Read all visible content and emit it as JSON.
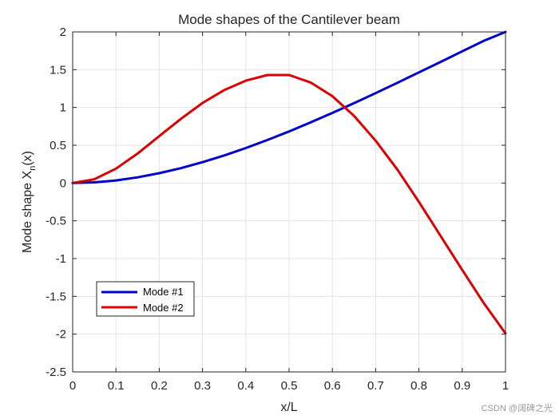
{
  "chart_data": {
    "type": "line",
    "title": "Mode shapes of the Cantilever beam",
    "xlabel": "x/L",
    "ylabel_main": "Mode shape X",
    "ylabel_sub": "n",
    "ylabel_tail": "(x)",
    "xlim": [
      0,
      1
    ],
    "ylim": [
      -2.5,
      2
    ],
    "xticks": [
      0,
      0.1,
      0.2,
      0.3,
      0.4,
      0.5,
      0.6,
      0.7,
      0.8,
      0.9,
      1
    ],
    "xtick_labels": [
      "0",
      "0.1",
      "0.2",
      "0.3",
      "0.4",
      "0.5",
      "0.6",
      "0.7",
      "0.8",
      "0.9",
      "1"
    ],
    "yticks": [
      -2.5,
      -2,
      -1.5,
      -1,
      -0.5,
      0,
      0.5,
      1,
      1.5,
      2
    ],
    "ytick_labels": [
      "-2.5",
      "-2",
      "-1.5",
      "-1",
      "-0.5",
      "0",
      "0.5",
      "1",
      "1.5",
      "2"
    ],
    "grid": true,
    "legend_position": "lower-left",
    "x": [
      0,
      0.05,
      0.1,
      0.15,
      0.2,
      0.25,
      0.3,
      0.35,
      0.4,
      0.45,
      0.5,
      0.55,
      0.6,
      0.65,
      0.7,
      0.75,
      0.8,
      0.85,
      0.9,
      0.95,
      1
    ],
    "series": [
      {
        "name": "Mode #1",
        "color": "#0000cc",
        "values": [
          0.0,
          0.009,
          0.034,
          0.075,
          0.13,
          0.197,
          0.276,
          0.365,
          0.463,
          0.57,
          0.683,
          0.803,
          0.928,
          1.057,
          1.19,
          1.326,
          1.464,
          1.603,
          1.743,
          1.883,
          2.0
        ]
      },
      {
        "name": "Mode #2",
        "color": "#dd0000",
        "values": [
          0.0,
          0.05,
          0.19,
          0.39,
          0.62,
          0.85,
          1.06,
          1.23,
          1.355,
          1.43,
          1.43,
          1.33,
          1.15,
          0.89,
          0.56,
          0.18,
          -0.25,
          -0.7,
          -1.15,
          -1.59,
          -1.99
        ]
      }
    ]
  },
  "watermark": "CSDN @阔碑之光"
}
